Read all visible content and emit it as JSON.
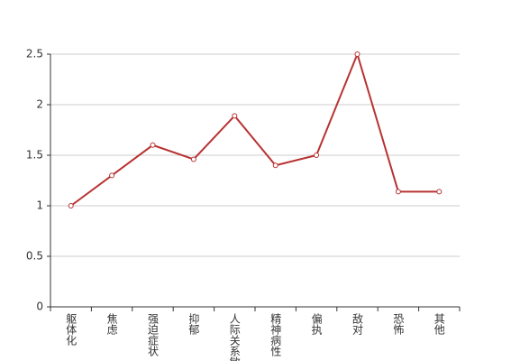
{
  "chart_data": {
    "type": "line",
    "categories": [
      "躯体化",
      "焦虑",
      "强迫症状",
      "抑郁",
      "人际关系敏感",
      "精神病性",
      "偏执",
      "敌对",
      "恐怖",
      "其他"
    ],
    "series": [
      {
        "color": "#b83232",
        "values": [
          1.0,
          1.3,
          1.6,
          1.46,
          1.89,
          1.4,
          1.5,
          2.5,
          1.14,
          1.14
        ]
      }
    ],
    "ylim": [
      0,
      2.5
    ],
    "yticks": [
      0,
      0.5,
      1,
      1.5,
      2,
      2.5
    ],
    "grid": true
  }
}
